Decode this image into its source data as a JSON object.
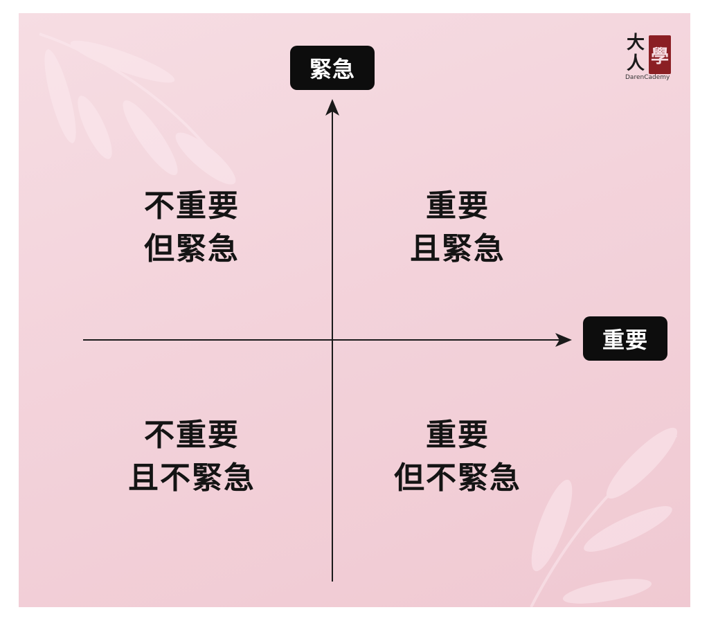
{
  "axes": {
    "y_label": "緊急",
    "x_label": "重要"
  },
  "quadrants": {
    "top_left": {
      "line1": "不重要",
      "line2": "但緊急"
    },
    "top_right": {
      "line1": "重要",
      "line2": "且緊急"
    },
    "bottom_left": {
      "line1": "不重要",
      "line2": "且不緊急"
    },
    "bottom_right": {
      "line1": "重要",
      "line2": "但不緊急"
    }
  },
  "logo": {
    "char_da": "大",
    "char_ren": "人",
    "char_xue": "學",
    "subtitle": "DarenCademy"
  },
  "colors": {
    "background": "#f3d3db",
    "pill": "#0d0d0d",
    "text": "#141414",
    "seal": "#8b1f24"
  }
}
